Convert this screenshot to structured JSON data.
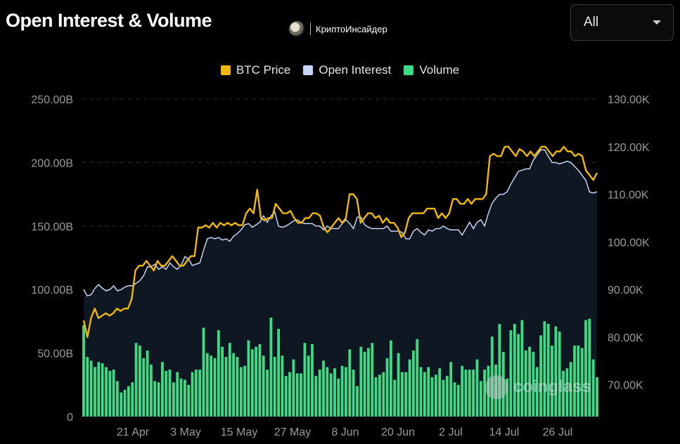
{
  "header": {
    "title": "Open Interest & Volume",
    "brand_name": "КриптоИнсайдер",
    "range_select": "All"
  },
  "legend": [
    {
      "label": "BTC Price",
      "color": "#f0b90b"
    },
    {
      "label": "Open Interest",
      "color": "#c5d6f7"
    },
    {
      "label": "Volume",
      "color": "#3ddc84"
    }
  ],
  "watermark": "coinglass",
  "chart_data": {
    "type": "line",
    "left_axis": {
      "ticks": [
        "250.00B",
        "200.00B",
        "150.00B",
        "100.00B",
        "50.00B",
        "0"
      ],
      "range": [
        0,
        250
      ]
    },
    "right_axis": {
      "ticks": [
        "130.00K",
        "120.00K",
        "110.00K",
        "100.00K",
        "90.00K",
        "80.00K",
        "70.00K"
      ],
      "range": [
        63.3,
        130
      ]
    },
    "x_ticks": [
      "21 Apr",
      "3 May",
      "15 May",
      "27 May",
      "8 Jun",
      "20 Jun",
      "2 Jul",
      "14 Jul",
      "26 Jul"
    ],
    "series": [
      {
        "name": "BTC Price",
        "axis": "right",
        "color": "#f0b90b",
        "values": [
          83.5,
          80,
          84,
          86,
          84,
          84.5,
          85,
          84.5,
          85,
          86,
          85.5,
          86,
          86,
          88,
          94,
          95,
          95,
          96,
          95,
          94,
          96,
          95,
          95,
          96,
          97,
          96,
          95,
          95,
          96,
          97,
          97,
          103,
          103,
          103.5,
          103,
          104,
          103,
          104,
          103.5,
          104,
          103.5,
          104,
          103.5,
          103.5,
          106,
          107,
          106,
          111,
          105,
          104.5,
          105,
          105,
          108,
          107,
          106,
          106,
          106.5,
          105,
          104,
          104,
          105,
          105,
          106,
          106,
          105.5,
          103,
          102,
          103,
          104,
          105,
          104,
          105,
          110,
          110,
          109,
          104,
          105,
          106,
          106,
          105,
          105.5,
          104,
          105,
          104,
          104,
          103,
          101,
          102,
          105,
          106,
          106,
          106,
          106,
          107,
          107,
          107,
          105,
          106,
          105,
          106,
          109,
          109,
          108,
          108,
          109,
          108,
          109,
          109,
          109,
          110,
          118,
          118.5,
          118,
          118,
          120,
          120,
          119,
          118,
          119.5,
          119,
          118,
          119,
          118,
          119,
          120,
          120,
          119,
          118,
          119,
          119,
          120,
          119,
          119,
          118,
          118.5,
          118,
          115,
          114,
          113,
          114.5
        ]
      },
      {
        "name": "Open Interest",
        "axis": "left",
        "values": [
          100,
          95,
          96,
          101,
          104,
          101,
          99,
          100,
          103,
          99,
          100,
          102,
          103,
          103,
          105,
          107,
          111,
          118,
          118,
          120,
          116,
          118,
          116,
          121,
          118,
          116,
          119,
          126,
          124,
          119,
          120,
          121,
          131,
          140,
          141,
          140,
          141,
          139,
          140,
          138,
          142,
          144,
          147,
          151,
          152,
          149,
          151,
          153,
          158,
          153,
          158,
          161,
          150,
          149,
          150,
          152,
          154,
          155,
          153,
          152,
          152,
          152,
          150,
          150,
          147,
          150,
          148,
          148,
          148,
          152,
          155,
          152,
          148,
          157,
          157,
          151,
          149,
          148,
          148,
          148,
          148,
          150,
          146,
          146,
          146,
          145,
          140,
          140,
          146,
          148,
          145,
          143,
          147,
          146,
          148,
          148,
          150,
          148,
          147,
          147,
          147,
          143,
          148,
          153,
          148,
          153,
          155,
          150,
          160,
          168,
          172,
          175,
          175,
          177,
          183,
          188,
          193,
          194,
          195,
          195,
          202,
          206,
          210,
          210,
          205,
          200,
          200,
          199,
          200,
          201,
          200,
          197,
          194,
          190,
          186,
          177,
          176,
          177
        ]
      },
      {
        "name": "Volume",
        "axis": "left",
        "values": [
          72,
          47,
          44,
          39,
          43,
          42,
          39,
          36,
          37,
          28,
          19,
          21,
          24,
          27,
          58,
          56,
          46,
          52,
          41,
          28,
          27,
          43,
          36,
          37,
          27,
          35,
          30,
          29,
          25,
          35,
          37,
          37,
          70,
          50,
          48,
          46,
          68,
          55,
          47,
          58,
          50,
          47,
          39,
          40,
          60,
          53,
          55,
          57,
          48,
          37,
          78,
          47,
          69,
          48,
          32,
          35,
          45,
          34,
          34,
          58,
          48,
          57,
          32,
          37,
          44,
          39,
          34,
          38,
          30,
          40,
          39,
          53,
          37,
          24,
          55,
          51,
          54,
          58,
          31,
          33,
          35,
          46,
          60,
          29,
          50,
          35,
          35,
          45,
          52,
          61,
          39,
          35,
          39,
          31,
          33,
          38,
          29,
          32,
          43,
          27,
          25,
          40,
          37,
          37,
          37,
          45,
          28,
          37,
          40,
          63,
          41,
          73,
          51,
          30,
          68,
          73,
          65,
          76,
          52,
          55,
          51,
          39,
          64,
          75,
          73,
          56,
          71,
          67,
          36,
          38,
          43,
          56,
          56,
          54,
          76,
          77,
          45,
          31
        ]
      }
    ]
  }
}
